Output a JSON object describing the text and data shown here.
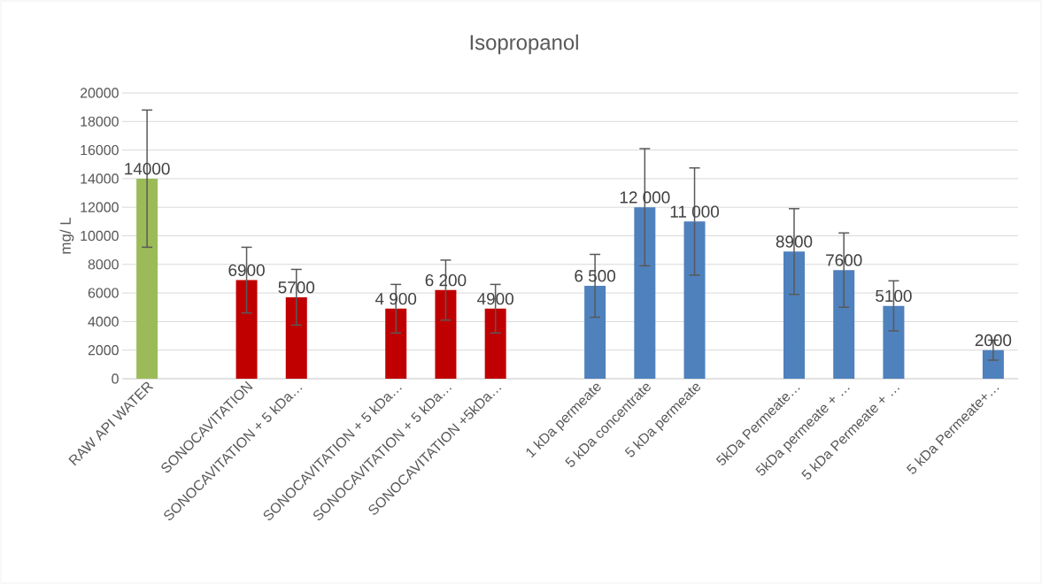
{
  "chart_data": {
    "type": "bar",
    "title": "Isopropanol",
    "ylabel": "mg/ L",
    "categories": [
      "RAW API WATER",
      null,
      "SONOCAVITATION",
      "SONOCAVITATION + 5 kDa…",
      null,
      "SONOCAVITATION + 5 kDa…",
      "SONOCAVITATION + 5 kDa…",
      "SONOCAVITATION +5kDa…",
      null,
      "1 kDa permeate",
      "5 kDa concentrate",
      "5 kDa permeate",
      null,
      "5kDa Permeate…",
      "5kDa permeate + …",
      "5 kDa Permeate + …",
      null,
      "5 kDa Permeate+…"
    ],
    "values": [
      14000,
      null,
      6900,
      5700,
      null,
      4900,
      6200,
      4900,
      null,
      6500,
      12000,
      11000,
      null,
      8900,
      7600,
      5100,
      null,
      2000
    ],
    "value_labels": [
      "14000",
      null,
      "6900",
      "5700",
      null,
      "4 900",
      "6 200",
      "4900",
      null,
      "6 500",
      "12 000",
      "11 000",
      null,
      "8900",
      "7600",
      "5100",
      null,
      "2000"
    ],
    "errors": [
      4800,
      null,
      2300,
      1950,
      null,
      1700,
      2100,
      1700,
      null,
      2200,
      4100,
      3750,
      null,
      3000,
      2600,
      1750,
      null,
      700
    ],
    "colors": [
      "#9bbb59",
      null,
      "#c00000",
      "#c00000",
      null,
      "#c00000",
      "#c00000",
      "#c00000",
      null,
      "#4f81bd",
      "#4f81bd",
      "#4f81bd",
      null,
      "#4f81bd",
      "#4f81bd",
      "#4f81bd",
      null,
      "#4f81bd"
    ],
    "ylim": [
      0,
      20000
    ],
    "yticks": [
      0,
      2000,
      4000,
      6000,
      8000,
      10000,
      12000,
      14000,
      16000,
      18000,
      20000
    ],
    "grid": "y"
  }
}
